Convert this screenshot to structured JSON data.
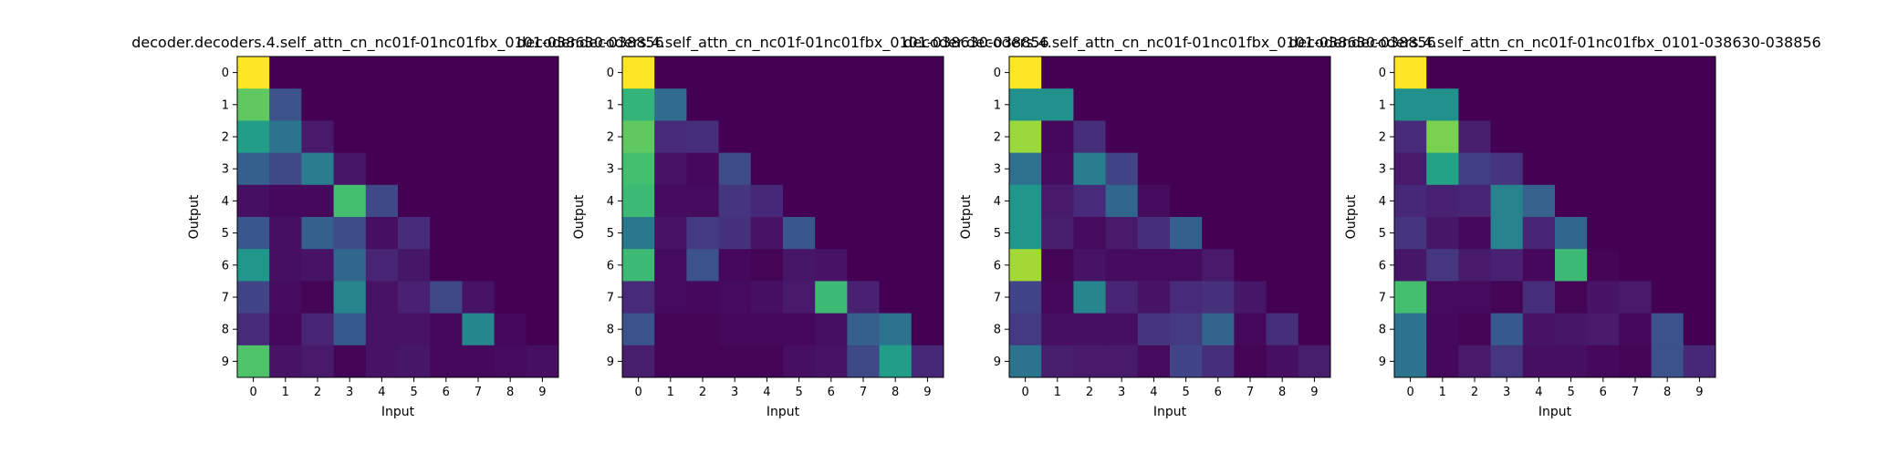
{
  "chart_data": [
    {
      "type": "heatmap",
      "title": "decoder.decoders.4.self_attn_cn_nc01f-01nc01fbx_0101-038630-038856",
      "xlabel": "Input",
      "ylabel": "Output",
      "x_ticks": [
        "0",
        "1",
        "2",
        "3",
        "4",
        "5",
        "6",
        "7",
        "8",
        "9"
      ],
      "y_ticks": [
        "0",
        "1",
        "2",
        "3",
        "4",
        "5",
        "6",
        "7",
        "8",
        "9"
      ],
      "colormap": "viridis",
      "grid": false,
      "values": [
        [
          1.0,
          0.0,
          0.0,
          0.0,
          0.0,
          0.0,
          0.0,
          0.0,
          0.0,
          0.0
        ],
        [
          0.75,
          0.25,
          0.0,
          0.0,
          0.0,
          0.0,
          0.0,
          0.0,
          0.0,
          0.0
        ],
        [
          0.55,
          0.38,
          0.07,
          0.0,
          0.0,
          0.0,
          0.0,
          0.0,
          0.0,
          0.0
        ],
        [
          0.3,
          0.22,
          0.42,
          0.06,
          0.0,
          0.0,
          0.0,
          0.0,
          0.0,
          0.0
        ],
        [
          0.04,
          0.02,
          0.02,
          0.7,
          0.22,
          0.0,
          0.0,
          0.0,
          0.0,
          0.0
        ],
        [
          0.27,
          0.04,
          0.3,
          0.23,
          0.04,
          0.12,
          0.0,
          0.0,
          0.0,
          0.0
        ],
        [
          0.52,
          0.04,
          0.05,
          0.33,
          0.1,
          0.06,
          0.0,
          0.0,
          0.0,
          0.0
        ],
        [
          0.2,
          0.03,
          0.01,
          0.45,
          0.05,
          0.09,
          0.22,
          0.05,
          0.0,
          0.0
        ],
        [
          0.12,
          0.02,
          0.1,
          0.28,
          0.05,
          0.05,
          0.02,
          0.46,
          0.02,
          0.0
        ],
        [
          0.72,
          0.05,
          0.07,
          0.01,
          0.05,
          0.06,
          0.02,
          0.02,
          0.03,
          0.04
        ]
      ]
    },
    {
      "type": "heatmap",
      "title": "decoder.decoders.4.self_attn_cn_nc01f-01nc01fbx_0101-038630-038856",
      "xlabel": "Input",
      "ylabel": "Output",
      "x_ticks": [
        "0",
        "1",
        "2",
        "3",
        "4",
        "5",
        "6",
        "7",
        "8",
        "9"
      ],
      "y_ticks": [
        "0",
        "1",
        "2",
        "3",
        "4",
        "5",
        "6",
        "7",
        "8",
        "9"
      ],
      "colormap": "viridis",
      "grid": false,
      "values": [
        [
          1.0,
          0.0,
          0.0,
          0.0,
          0.0,
          0.0,
          0.0,
          0.0,
          0.0,
          0.0
        ],
        [
          0.65,
          0.35,
          0.0,
          0.0,
          0.0,
          0.0,
          0.0,
          0.0,
          0.0,
          0.0
        ],
        [
          0.75,
          0.12,
          0.13,
          0.0,
          0.0,
          0.0,
          0.0,
          0.0,
          0.0,
          0.0
        ],
        [
          0.7,
          0.05,
          0.02,
          0.23,
          0.0,
          0.0,
          0.0,
          0.0,
          0.0,
          0.0
        ],
        [
          0.68,
          0.03,
          0.03,
          0.15,
          0.11,
          0.0,
          0.0,
          0.0,
          0.0,
          0.0
        ],
        [
          0.4,
          0.05,
          0.17,
          0.14,
          0.05,
          0.27,
          0.0,
          0.0,
          0.0,
          0.0
        ],
        [
          0.68,
          0.03,
          0.25,
          0.02,
          0.01,
          0.06,
          0.05,
          0.0,
          0.0,
          0.0
        ],
        [
          0.12,
          0.03,
          0.02,
          0.03,
          0.04,
          0.07,
          0.68,
          0.09,
          0.0,
          0.0
        ],
        [
          0.26,
          0.01,
          0.01,
          0.02,
          0.02,
          0.02,
          0.04,
          0.3,
          0.38,
          0.0
        ],
        [
          0.08,
          0.01,
          0.01,
          0.01,
          0.01,
          0.04,
          0.05,
          0.22,
          0.55,
          0.11
        ]
      ]
    },
    {
      "type": "heatmap",
      "title": "decoder.decoders.4.self_attn_cn_nc01f-01nc01fbx_0101-038630-038856",
      "xlabel": "Input",
      "ylabel": "Output",
      "x_ticks": [
        "0",
        "1",
        "2",
        "3",
        "4",
        "5",
        "6",
        "7",
        "8",
        "9"
      ],
      "y_ticks": [
        "0",
        "1",
        "2",
        "3",
        "4",
        "5",
        "6",
        "7",
        "8",
        "9"
      ],
      "colormap": "viridis",
      "grid": false,
      "values": [
        [
          1.0,
          0.0,
          0.0,
          0.0,
          0.0,
          0.0,
          0.0,
          0.0,
          0.0,
          0.0
        ],
        [
          0.5,
          0.5,
          0.0,
          0.0,
          0.0,
          0.0,
          0.0,
          0.0,
          0.0,
          0.0
        ],
        [
          0.85,
          0.02,
          0.13,
          0.0,
          0.0,
          0.0,
          0.0,
          0.0,
          0.0,
          0.0
        ],
        [
          0.37,
          0.03,
          0.42,
          0.2,
          0.0,
          0.0,
          0.0,
          0.0,
          0.0,
          0.0
        ],
        [
          0.52,
          0.07,
          0.12,
          0.33,
          0.03,
          0.0,
          0.0,
          0.0,
          0.0,
          0.0
        ],
        [
          0.52,
          0.08,
          0.03,
          0.07,
          0.13,
          0.3,
          0.0,
          0.0,
          0.0,
          0.0
        ],
        [
          0.86,
          0.01,
          0.05,
          0.03,
          0.03,
          0.03,
          0.07,
          0.0,
          0.0,
          0.0
        ],
        [
          0.2,
          0.02,
          0.45,
          0.1,
          0.05,
          0.12,
          0.14,
          0.06,
          0.0,
          0.0
        ],
        [
          0.17,
          0.04,
          0.04,
          0.04,
          0.15,
          0.17,
          0.32,
          0.02,
          0.13,
          0.0
        ],
        [
          0.38,
          0.08,
          0.07,
          0.07,
          0.03,
          0.2,
          0.13,
          0.01,
          0.04,
          0.08
        ]
      ]
    },
    {
      "type": "heatmap",
      "title": "decoder.decoders.4.self_attn_cn_nc01f-01nc01fbx_0101-038630-038856",
      "xlabel": "Input",
      "ylabel": "Output",
      "x_ticks": [
        "0",
        "1",
        "2",
        "3",
        "4",
        "5",
        "6",
        "7",
        "8",
        "9"
      ],
      "y_ticks": [
        "0",
        "1",
        "2",
        "3",
        "4",
        "5",
        "6",
        "7",
        "8",
        "9"
      ],
      "colormap": "viridis",
      "grid": false,
      "values": [
        [
          1.0,
          0.0,
          0.0,
          0.0,
          0.0,
          0.0,
          0.0,
          0.0,
          0.0,
          0.0
        ],
        [
          0.5,
          0.5,
          0.0,
          0.0,
          0.0,
          0.0,
          0.0,
          0.0,
          0.0,
          0.0
        ],
        [
          0.12,
          0.8,
          0.08,
          0.0,
          0.0,
          0.0,
          0.0,
          0.0,
          0.0,
          0.0
        ],
        [
          0.07,
          0.58,
          0.18,
          0.15,
          0.0,
          0.0,
          0.0,
          0.0,
          0.0,
          0.0
        ],
        [
          0.11,
          0.09,
          0.1,
          0.44,
          0.31,
          0.0,
          0.0,
          0.0,
          0.0,
          0.0
        ],
        [
          0.15,
          0.06,
          0.02,
          0.44,
          0.1,
          0.33,
          0.0,
          0.0,
          0.0,
          0.0
        ],
        [
          0.06,
          0.16,
          0.07,
          0.09,
          0.02,
          0.68,
          0.01,
          0.0,
          0.0,
          0.0
        ],
        [
          0.7,
          0.03,
          0.03,
          0.01,
          0.13,
          0.01,
          0.05,
          0.07,
          0.0,
          0.0
        ],
        [
          0.38,
          0.02,
          0.01,
          0.28,
          0.05,
          0.06,
          0.07,
          0.02,
          0.25,
          0.0
        ],
        [
          0.38,
          0.02,
          0.07,
          0.16,
          0.04,
          0.04,
          0.02,
          0.01,
          0.25,
          0.11
        ]
      ]
    }
  ]
}
